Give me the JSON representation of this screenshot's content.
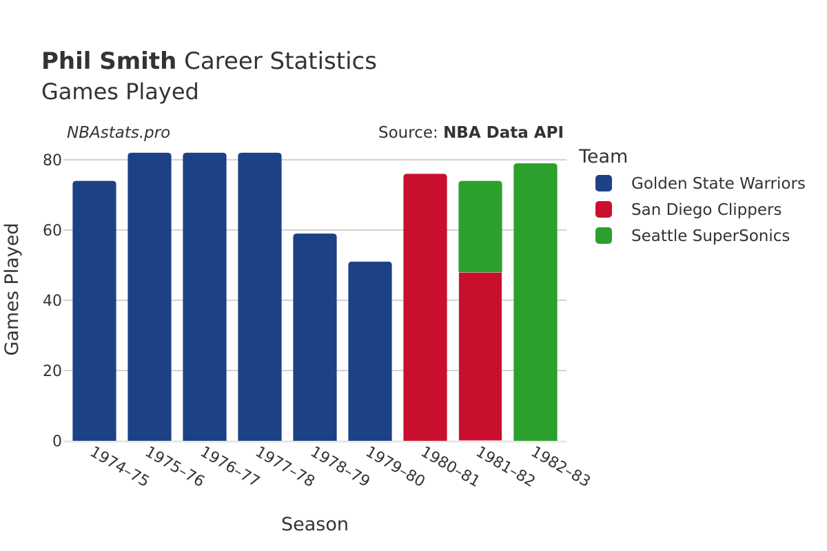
{
  "header": {
    "title_bold": "Phil Smith",
    "title_rest": " Career Statistics",
    "subtitle": "Games Played",
    "watermark": "NBAstats.pro",
    "source_label": "Source: ",
    "source_value": "NBA Data API"
  },
  "legend": {
    "title": "Team"
  },
  "chart_data": {
    "type": "bar",
    "stacked": true,
    "xlabel": "Season",
    "ylabel": "Games Played",
    "ylim": [
      0,
      82
    ],
    "yticks": [
      0,
      20,
      40,
      60,
      80
    ],
    "grid": true,
    "legend_position": "right",
    "categories": [
      "1974–75",
      "1975–76",
      "1976–77",
      "1977–78",
      "1978–79",
      "1979–80",
      "1980–81",
      "1981–82",
      "1982–83"
    ],
    "series": [
      {
        "name": "Golden State Warriors",
        "color": "#1c4285",
        "values": [
          74,
          82,
          82,
          82,
          59,
          51,
          0,
          0,
          0
        ]
      },
      {
        "name": "San Diego Clippers",
        "color": "#c8102e",
        "values": [
          0,
          0,
          0,
          0,
          0,
          0,
          76,
          48,
          0
        ]
      },
      {
        "name": "Seattle SuperSonics",
        "color": "#2ca02c",
        "values": [
          0,
          0,
          0,
          0,
          0,
          0,
          0,
          26,
          79
        ]
      }
    ]
  }
}
